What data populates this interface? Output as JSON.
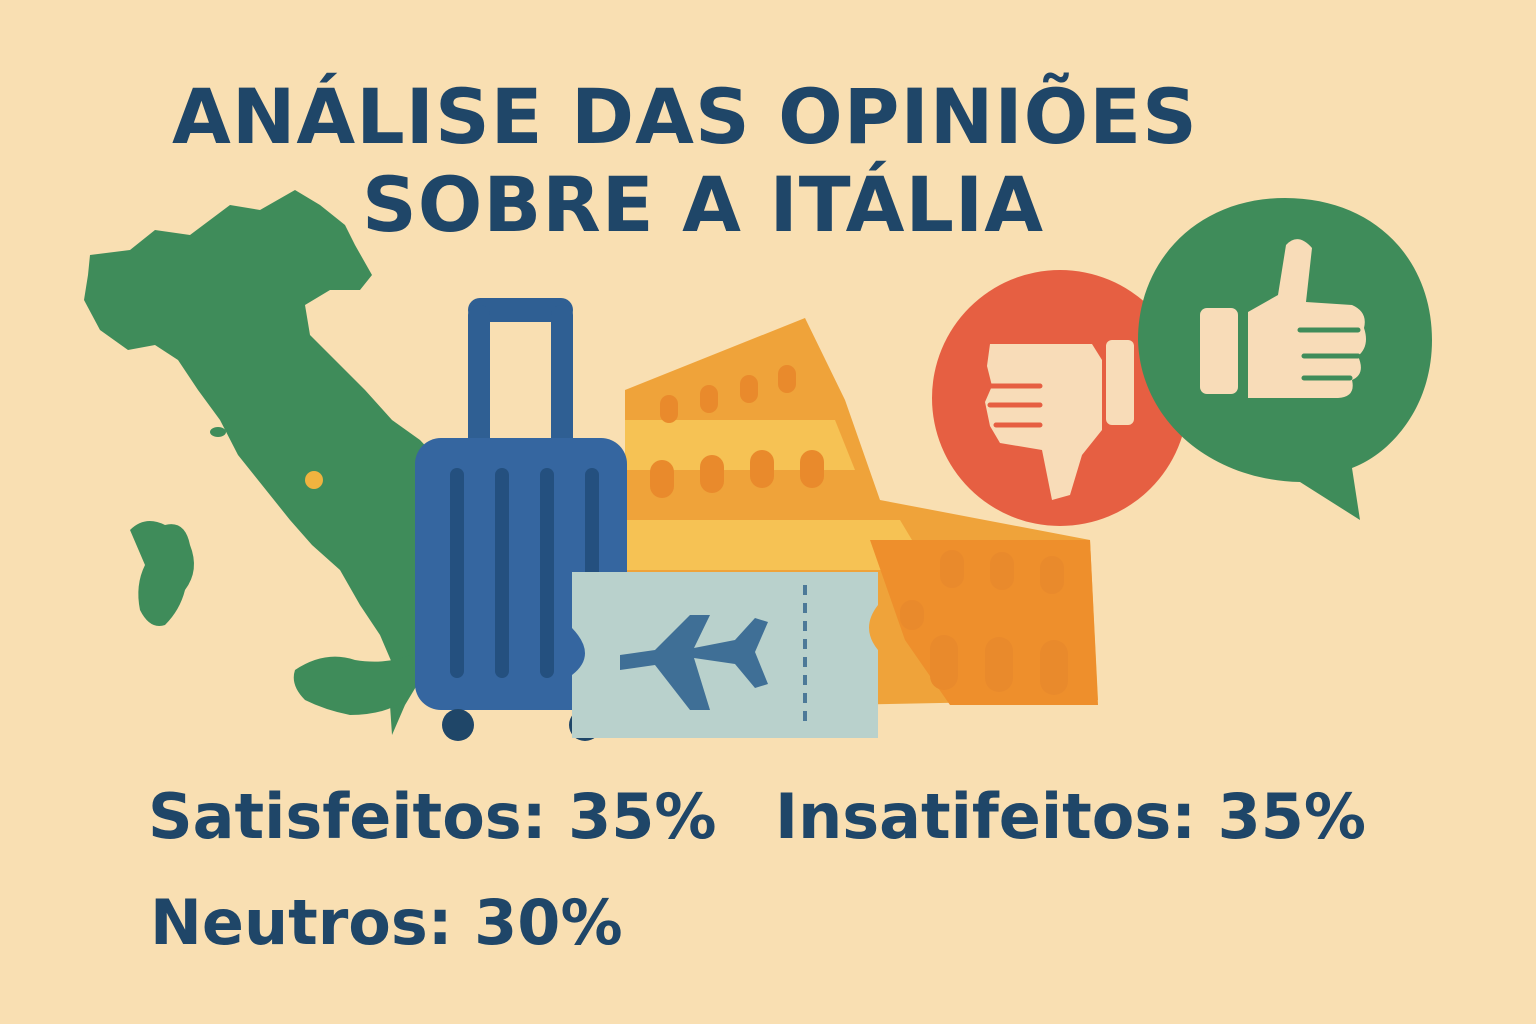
{
  "title": {
    "line1": "ANÁLISE DAS OPINIÕES",
    "line2": "SOBRE A ITÁLIA"
  },
  "stats": {
    "satisfied": "Satisfeitos: 35%",
    "unsatisfied": "Insatifeitos: 35%",
    "neutral": "Neutros: 30%"
  },
  "colors": {
    "background": "#f9dfb2",
    "text": "#1f4668",
    "map": "#3f8c5a",
    "suitcase": "#2f5f93",
    "ticket": "#b9d1cc",
    "colosseum": "#efa33a",
    "thumbs_down_bubble": "#e65f42",
    "thumbs_up_bubble": "#3f8c5a"
  },
  "icons": [
    "italy-map-icon",
    "suitcase-icon",
    "plane-ticket-icon",
    "colosseum-icon",
    "thumbs-down-icon",
    "thumbs-up-icon"
  ]
}
